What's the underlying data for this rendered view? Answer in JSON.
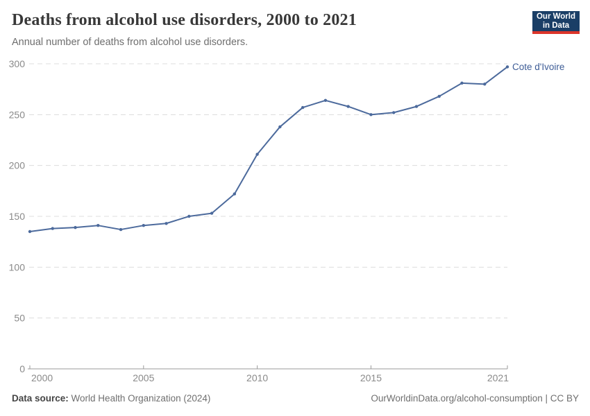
{
  "colors": {
    "line": "#4c6a9c",
    "series_label": "#3d5c96",
    "grid": "#dcdcdc",
    "axis": "#9a9a9a",
    "tick_text": "#8a8a8a",
    "logo_background": "#1a3e66",
    "logo_stripe": "#dc352a"
  },
  "logo": {
    "line1": "Our World",
    "line2": "in Data"
  },
  "chart_data": {
    "type": "line",
    "title": "Deaths from alcohol use disorders, 2000 to 2021",
    "subtitle": "Annual number of deaths from alcohol use disorders.",
    "series": [
      {
        "name": "Cote d'Ivoire",
        "x": [
          2000,
          2001,
          2002,
          2003,
          2004,
          2005,
          2006,
          2007,
          2008,
          2009,
          2010,
          2011,
          2012,
          2013,
          2014,
          2015,
          2016,
          2017,
          2018,
          2019,
          2020,
          2021
        ],
        "values": [
          135,
          138,
          139,
          141,
          137,
          141,
          143,
          150,
          153,
          172,
          211,
          238,
          257,
          264,
          258,
          250,
          252,
          258,
          268,
          281,
          280,
          297
        ]
      }
    ],
    "xlabel": "",
    "ylabel": "",
    "xlim": [
      2000,
      2021
    ],
    "ylim": [
      0,
      300
    ],
    "yticks": [
      0,
      50,
      100,
      150,
      200,
      250,
      300
    ],
    "xticks": [
      2000,
      2005,
      2010,
      2015,
      2021
    ],
    "grid": "horizontal-dashed",
    "legend_position": "end-of-line"
  },
  "footer": {
    "source_label": "Data source:",
    "source_value": "World Health Organization (2024)",
    "attribution": "OurWorldinData.org/alcohol-consumption | CC BY"
  }
}
